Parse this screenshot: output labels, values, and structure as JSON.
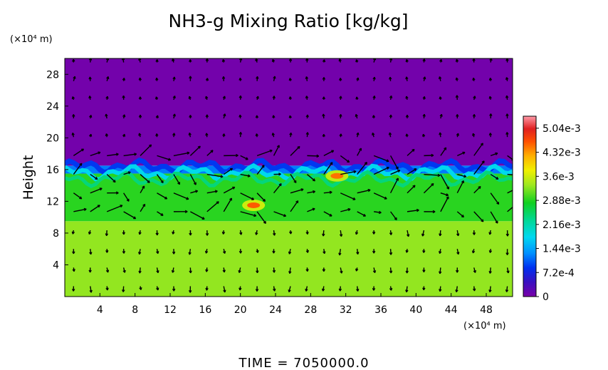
{
  "chart_data": {
    "type": "heatmap",
    "title": "NH3-g Mixing Ratio [kg/kg]",
    "ylabel": "Height",
    "x_unit": "(×10⁴ m)",
    "y_unit": "(×10⁴ m)",
    "x_ticks": [
      4,
      8,
      12,
      16,
      20,
      24,
      28,
      32,
      36,
      40,
      44,
      48
    ],
    "y_ticks": [
      4,
      8,
      12,
      16,
      20,
      24,
      28
    ],
    "xlim": [
      0,
      51
    ],
    "ylim": [
      0,
      30
    ],
    "colorbar": {
      "labels": [
        "5.04e-3",
        "4.32e-3",
        "3.6e-3",
        "2.88e-3",
        "2.16e-3",
        "1.44e-3",
        "7.2e-4",
        "0"
      ],
      "values": [
        0.00504,
        0.00432,
        0.0036,
        0.00288,
        0.00216,
        0.00144,
        0.00072,
        0
      ],
      "max": 0.0054
    },
    "regions": [
      {
        "from_height": 0,
        "to_height": 9.5,
        "value": 0.0033
      },
      {
        "from_height": 9.5,
        "to_height": 15.5,
        "value": 0.0029
      },
      {
        "from_height": 15.5,
        "to_height": 16.5,
        "value": 0.0012
      },
      {
        "from_height": 16.5,
        "to_height": 30,
        "value": 5e-05
      }
    ],
    "hotspots": [
      {
        "x": 21.5,
        "height": 11.5,
        "value": 0.0046
      },
      {
        "x": 31,
        "height": 15.2,
        "value": 0.0045
      }
    ],
    "vectors": "wind field arrows overlaid"
  },
  "footer": {
    "time_label": "TIME = 7050000.0"
  }
}
